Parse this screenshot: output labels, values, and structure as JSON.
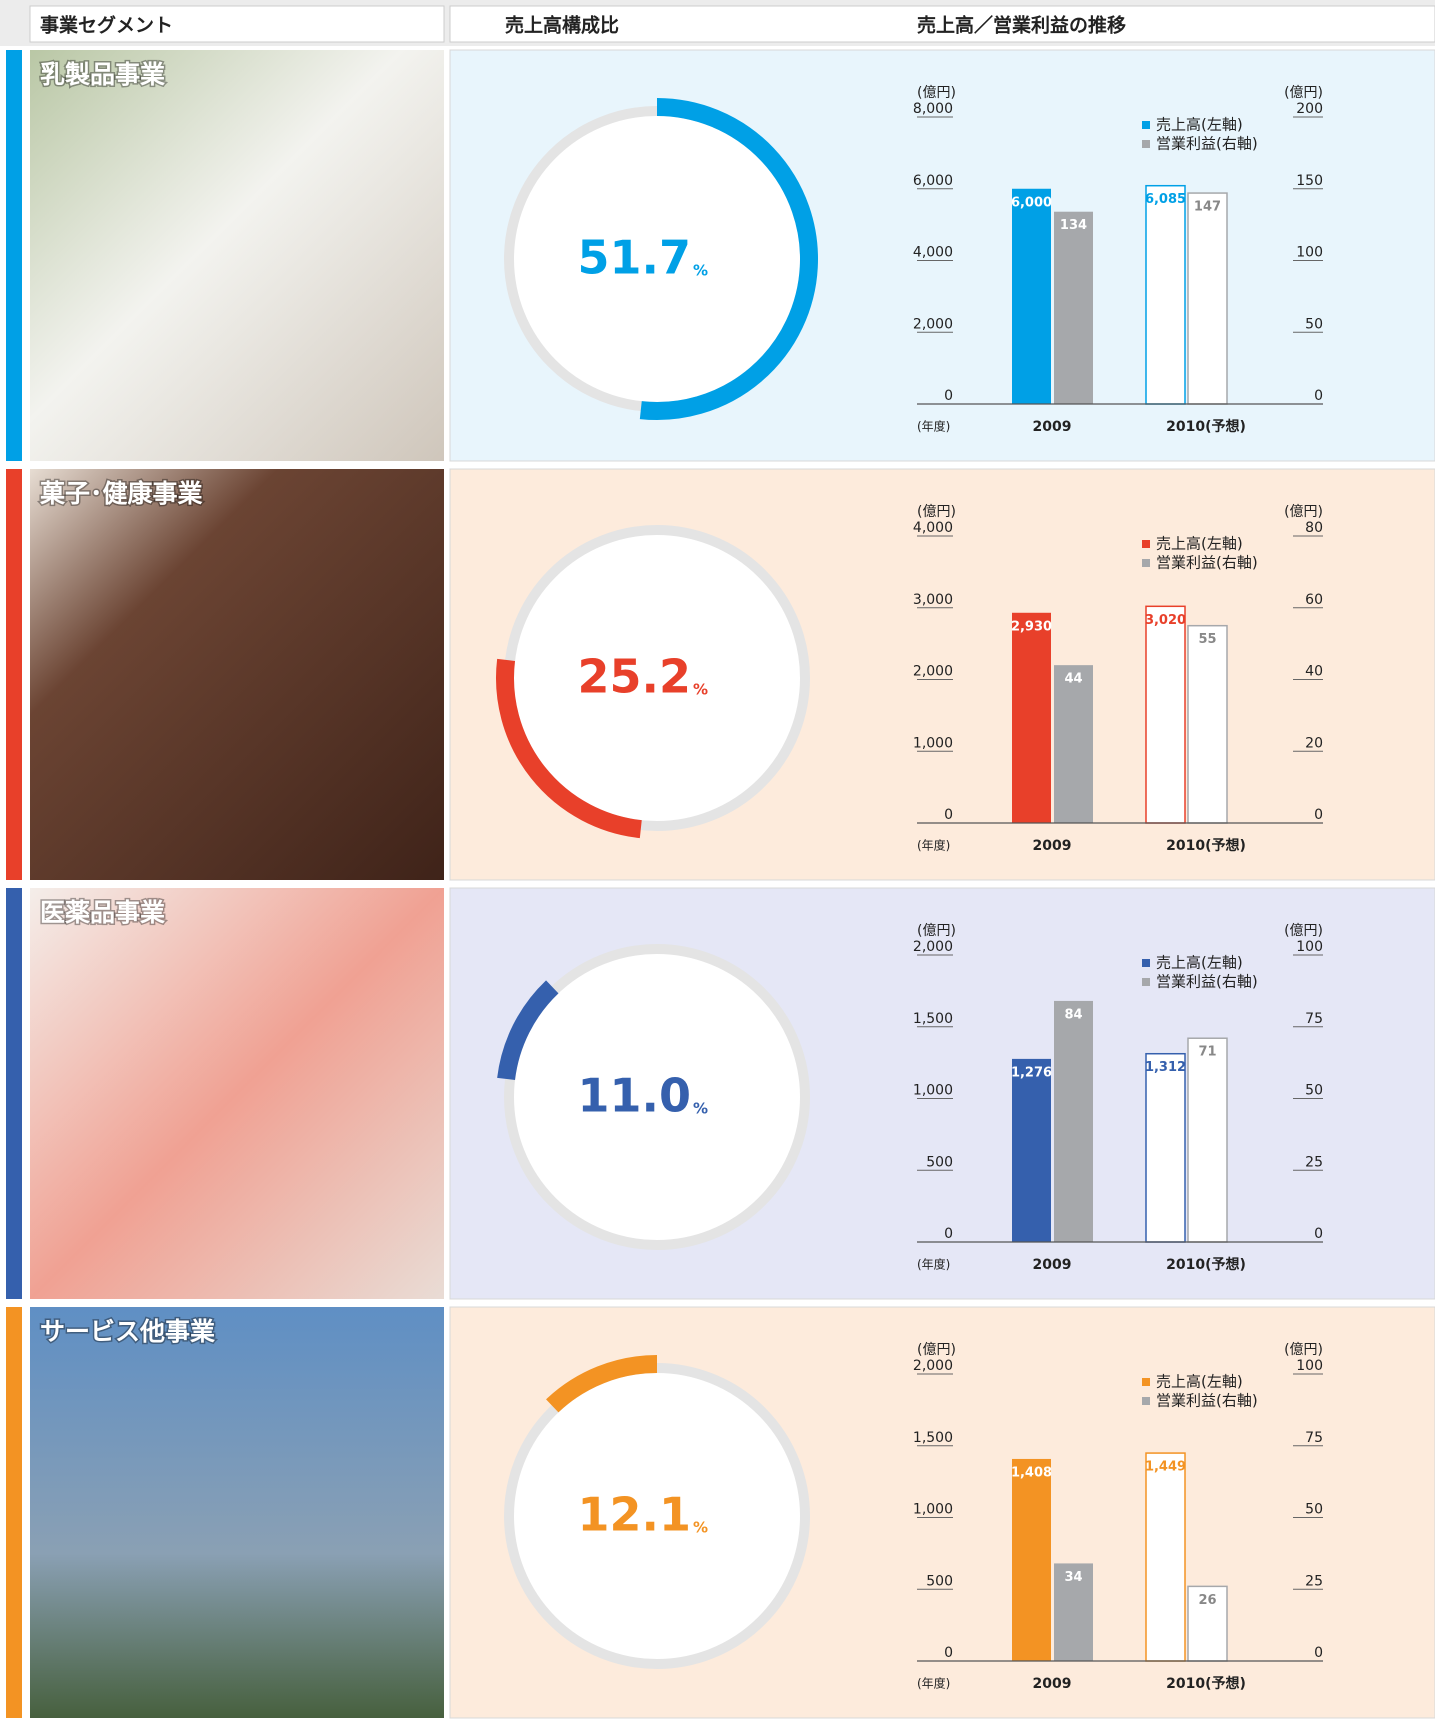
{
  "columns": [
    "事業セグメント",
    "売上高構成比",
    "売上高／営業利益の推移"
  ],
  "chart_data": [
    {
      "type": "pie",
      "title": "乳製品事業",
      "values": [
        51.7
      ],
      "value_labels": [
        "51.7"
      ],
      "unit": "%",
      "color": "#00a0e6",
      "background": "#e8f5fc"
    },
    {
      "type": "bar",
      "categories": [
        "2009",
        "2010(予想)"
      ],
      "x_label": "(年度)",
      "y_label": "(億円)",
      "y2_label": "(億円)",
      "hollow": [
        false,
        true
      ],
      "series": [
        {
          "name": "売上高(左軸)",
          "color": "#00a0e6",
          "values": [
            6000,
            6085
          ],
          "value_labels": [
            "6,000",
            "6,085"
          ]
        },
        {
          "name": "営業利益(右軸)",
          "color": "#a6a8ab",
          "axis": "y2",
          "values": [
            134,
            147
          ]
        }
      ],
      "ylim": [
        0,
        8000
      ],
      "yticks": [
        0,
        {
          "value": 2000,
          "label": "2,000"
        },
        {
          "value": 4000,
          "label": "4,000"
        },
        {
          "value": 6000,
          "label": "6,000"
        },
        {
          "value": 8000,
          "label": "8,000"
        }
      ],
      "y2lim": [
        0,
        200
      ],
      "y2ticks": [
        0,
        50,
        100,
        150,
        200
      ]
    },
    {
      "type": "pie",
      "title": "菓子･健康事業",
      "values": [
        25.2
      ],
      "value_labels": [
        "25.2"
      ],
      "unit": "%",
      "color": "#e8402a",
      "background": "#fdebdc"
    },
    {
      "type": "bar",
      "categories": [
        "2009",
        "2010(予想)"
      ],
      "x_label": "(年度)",
      "y_label": "(億円)",
      "y2_label": "(億円)",
      "hollow": [
        false,
        true
      ],
      "series": [
        {
          "name": "売上高(左軸)",
          "color": "#e8402a",
          "values": [
            2930,
            3020
          ],
          "value_labels": [
            "2,930",
            "3,020"
          ]
        },
        {
          "name": "営業利益(右軸)",
          "color": "#a6a8ab",
          "axis": "y2",
          "values": [
            44,
            55
          ]
        }
      ],
      "ylim": [
        0,
        4000
      ],
      "yticks": [
        0,
        {
          "value": 1000,
          "label": "1,000"
        },
        {
          "value": 2000,
          "label": "2,000"
        },
        {
          "value": 3000,
          "label": "3,000"
        },
        {
          "value": 4000,
          "label": "4,000"
        }
      ],
      "y2lim": [
        0,
        80
      ],
      "y2ticks": [
        0,
        20,
        40,
        60,
        80
      ]
    },
    {
      "type": "pie",
      "title": "医薬品事業",
      "values": [
        11.0
      ],
      "value_labels": [
        "11.0"
      ],
      "unit": "%",
      "color": "#3560ad",
      "background": "#e5e7f6"
    },
    {
      "type": "bar",
      "categories": [
        "2009",
        "2010(予想)"
      ],
      "x_label": "(年度)",
      "y_label": "(億円)",
      "y2_label": "(億円)",
      "hollow": [
        false,
        true
      ],
      "series": [
        {
          "name": "売上高(左軸)",
          "color": "#3560ad",
          "values": [
            1276,
            1312
          ],
          "value_labels": [
            "1,276",
            "1,312"
          ]
        },
        {
          "name": "営業利益(右軸)",
          "color": "#a6a8ab",
          "axis": "y2",
          "values": [
            84,
            71
          ]
        }
      ],
      "ylim": [
        0,
        2000
      ],
      "yticks": [
        0,
        500,
        {
          "value": 1000,
          "label": "1,000"
        },
        {
          "value": 1500,
          "label": "1,500"
        },
        {
          "value": 2000,
          "label": "2,000"
        }
      ],
      "y2lim": [
        0,
        100
      ],
      "y2ticks": [
        0,
        25,
        50,
        75,
        100
      ]
    },
    {
      "type": "pie",
      "title": "サービス他事業",
      "values": [
        12.1
      ],
      "value_labels": [
        "12.1"
      ],
      "unit": "%",
      "color": "#f39323",
      "background": "#fdebdc"
    },
    {
      "type": "bar",
      "categories": [
        "2009",
        "2010(予想)"
      ],
      "x_label": "(年度)",
      "y_label": "(億円)",
      "y2_label": "(億円)",
      "hollow": [
        false,
        true
      ],
      "series": [
        {
          "name": "売上高(左軸)",
          "color": "#f39323",
          "values": [
            1408,
            1449
          ],
          "value_labels": [
            "1,408",
            "1,449"
          ]
        },
        {
          "name": "営業利益(右軸)",
          "color": "#a6a8ab",
          "axis": "y2",
          "values": [
            34,
            26
          ]
        }
      ],
      "ylim": [
        0,
        2000
      ],
      "yticks": [
        0,
        500,
        {
          "value": 1000,
          "label": "1,000"
        },
        {
          "value": 1500,
          "label": "1,500"
        },
        {
          "value": 2000,
          "label": "2,000"
        }
      ],
      "y2lim": [
        0,
        100
      ],
      "y2ticks": [
        0,
        25,
        50,
        75,
        100
      ]
    }
  ]
}
